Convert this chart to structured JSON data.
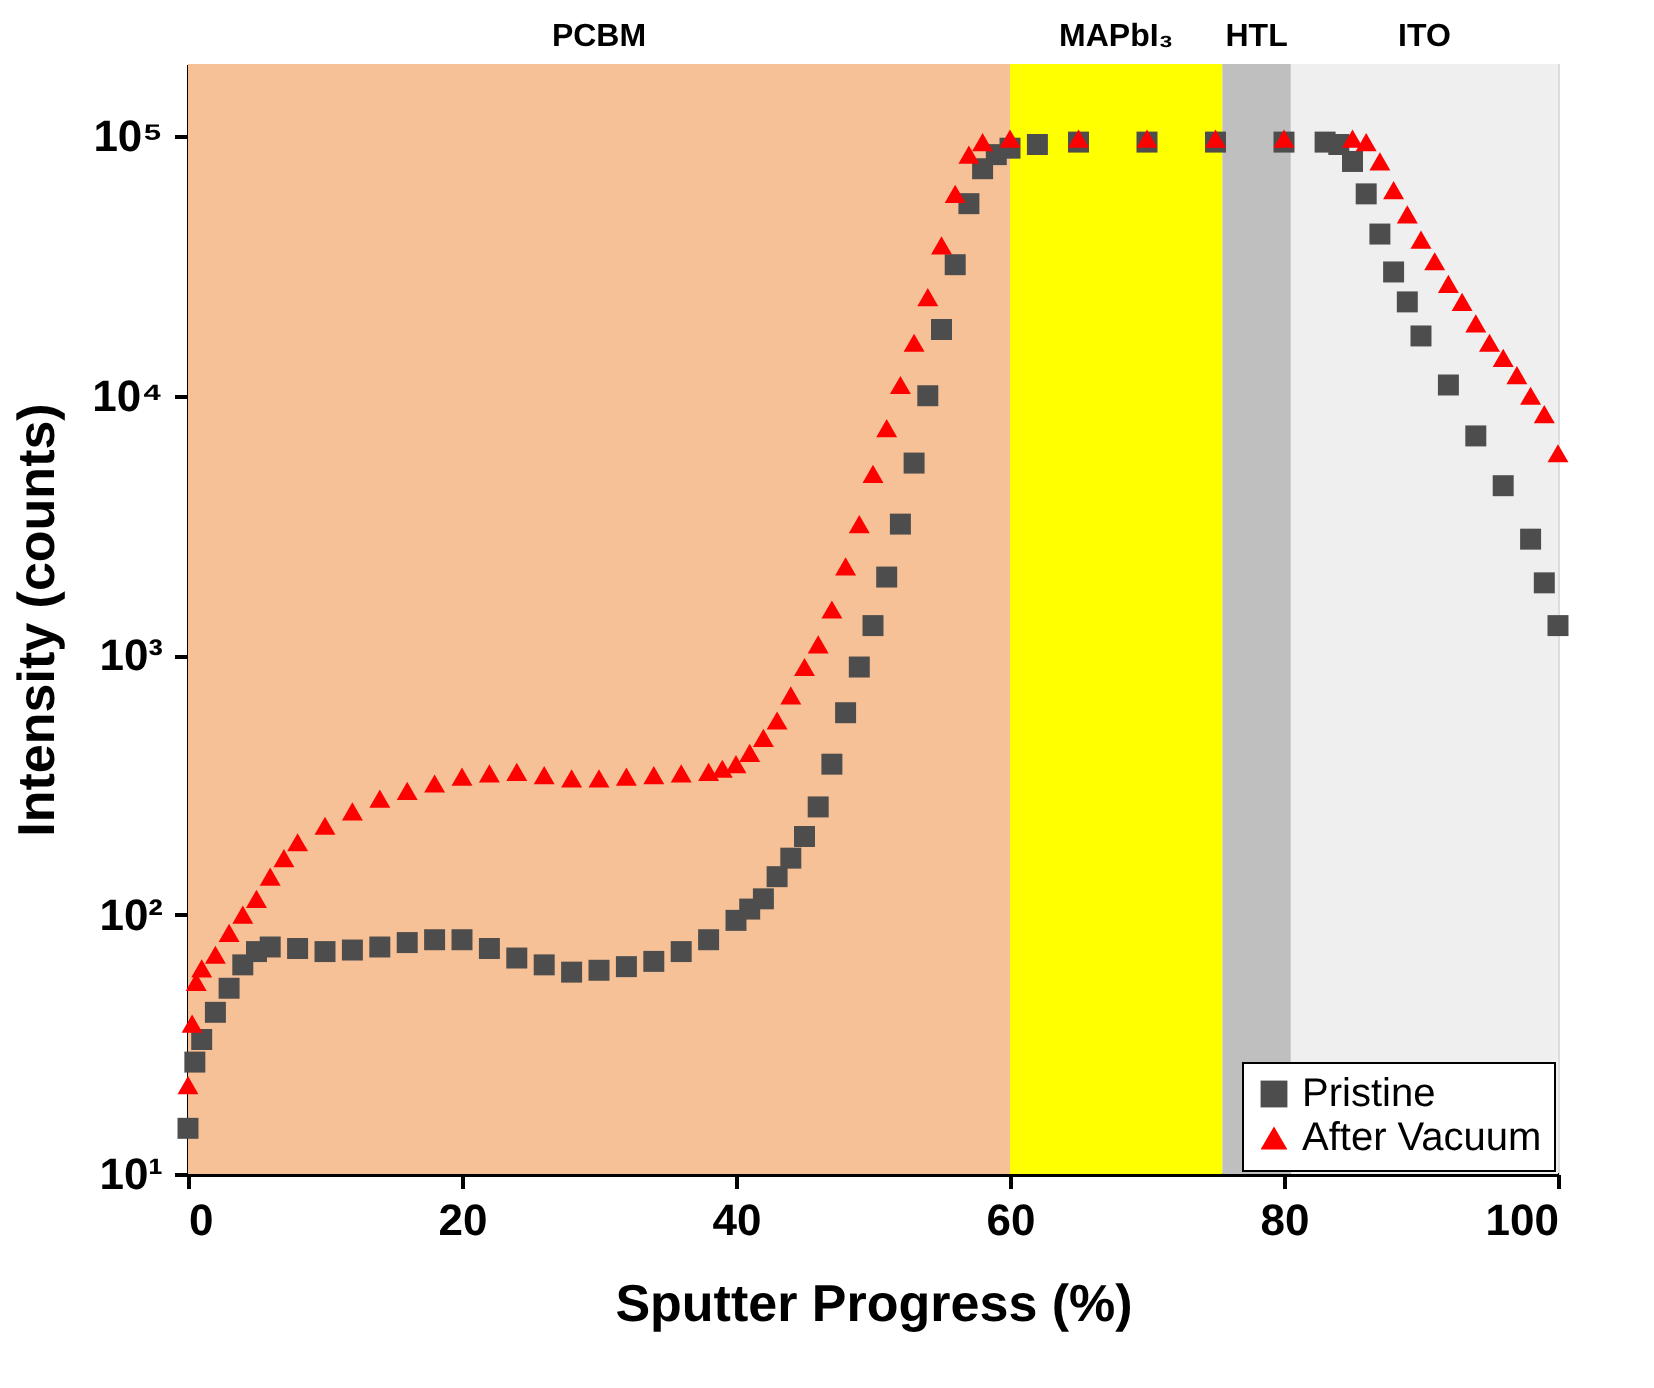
{
  "chart_data": {
    "type": "scatter",
    "xlabel": "Sputter Progress (%)",
    "ylabel": "Intensity (counts)",
    "xlim": [
      0,
      100
    ],
    "xticks": [
      0,
      20,
      40,
      60,
      80,
      100
    ],
    "ylim": [
      10,
      190000
    ],
    "log": true,
    "yticks": [
      {
        "value": 10,
        "label": "10¹"
      },
      {
        "value": 100,
        "label": "10²"
      },
      {
        "value": 1000,
        "label": "10³"
      },
      {
        "value": 10000,
        "label": "10⁴"
      },
      {
        "value": 100000,
        "label": "10⁵"
      }
    ],
    "grid": false,
    "legend": "bottom right",
    "bands": [
      {
        "axis": "x",
        "from": 0,
        "to": 60,
        "label": "PCBM",
        "color": "#f7c197"
      },
      {
        "axis": "x",
        "from": 60,
        "to": 75.5,
        "label": "MAPbI₃",
        "color": "#ffff00"
      },
      {
        "axis": "x",
        "from": 75.5,
        "to": 80.5,
        "label": "HTL",
        "color": "#bfbfbf"
      },
      {
        "axis": "x",
        "from": 80.5,
        "to": 100,
        "label": "ITO",
        "color": "#efefef"
      }
    ],
    "series": [
      {
        "name": "Pristine",
        "color": "#4d4d4d",
        "marker": "square",
        "x": [
          0,
          0.5,
          1,
          2,
          3,
          4,
          5,
          6,
          8,
          10,
          12,
          14,
          16,
          18,
          20,
          22,
          24,
          26,
          28,
          30,
          32,
          34,
          36,
          38,
          40,
          41,
          42,
          43,
          44,
          45,
          46,
          47,
          48,
          49,
          50,
          51,
          52,
          53,
          54,
          55,
          56,
          57,
          58,
          59,
          60,
          62,
          65,
          70,
          75,
          80,
          83,
          84,
          85,
          86,
          87,
          88,
          89,
          90,
          92,
          94,
          96,
          98,
          99,
          100
        ],
        "values": [
          15,
          27,
          33,
          42,
          52,
          64,
          72,
          75,
          74,
          72,
          73,
          75,
          78,
          80,
          80,
          74,
          68,
          64,
          60,
          61,
          63,
          66,
          72,
          80,
          95,
          105,
          115,
          140,
          165,
          200,
          260,
          380,
          600,
          900,
          1300,
          2000,
          3200,
          5500,
          10000,
          18000,
          32000,
          55000,
          75000,
          85000,
          90000,
          93000,
          95000,
          95000,
          95000,
          95000,
          95000,
          93000,
          80000,
          60000,
          42000,
          30000,
          23000,
          17000,
          11000,
          7000,
          4500,
          2800,
          1900,
          1300
        ]
      },
      {
        "name": "After Vacuum",
        "color": "#ff0000",
        "marker": "triangle",
        "x": [
          0,
          0.3,
          0.6,
          1,
          2,
          3,
          4,
          5,
          6,
          7,
          8,
          10,
          12,
          14,
          16,
          18,
          20,
          22,
          24,
          26,
          28,
          30,
          32,
          34,
          36,
          38,
          39,
          40,
          41,
          42,
          43,
          44,
          45,
          46,
          47,
          48,
          49,
          50,
          51,
          52,
          53,
          54,
          55,
          56,
          57,
          58,
          60,
          65,
          70,
          75,
          80,
          85,
          86,
          87,
          88,
          89,
          90,
          91,
          92,
          93,
          94,
          95,
          96,
          97,
          98,
          99,
          100
        ],
        "values": [
          22,
          38,
          55,
          62,
          70,
          85,
          100,
          115,
          140,
          165,
          190,
          220,
          250,
          280,
          300,
          320,
          340,
          350,
          355,
          345,
          335,
          335,
          340,
          345,
          350,
          355,
          365,
          380,
          420,
          480,
          560,
          700,
          900,
          1100,
          1500,
          2200,
          3200,
          5000,
          7500,
          11000,
          16000,
          24000,
          38000,
          60000,
          85000,
          95000,
          98000,
          98000,
          98000,
          98000,
          98000,
          98000,
          95000,
          80000,
          62000,
          50000,
          40000,
          33000,
          27000,
          23000,
          19000,
          16000,
          14000,
          12000,
          10000,
          8500,
          6000
        ]
      }
    ]
  }
}
